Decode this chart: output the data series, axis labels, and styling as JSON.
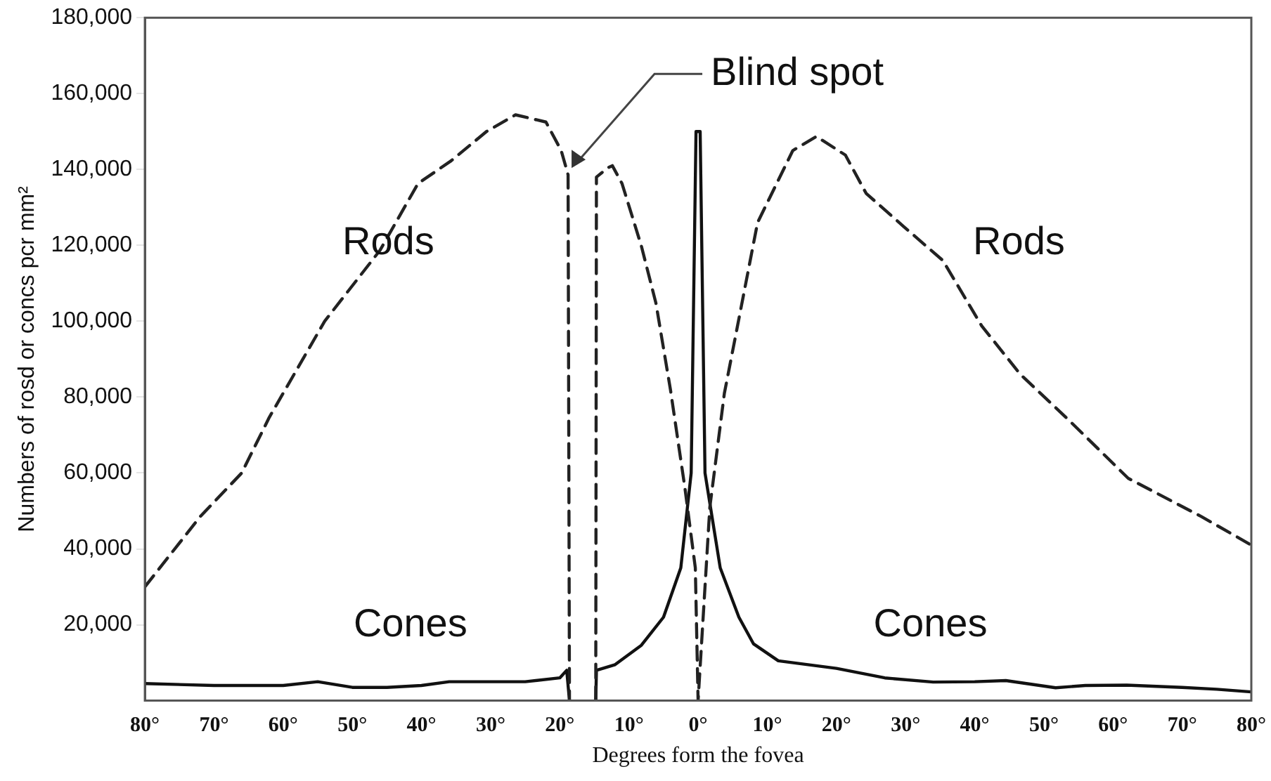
{
  "chart_data": {
    "type": "line",
    "xlabel": "Degrees form the fovea",
    "ylabel": "Numbers of rosd or concs pcr mm²",
    "xlim": [
      -80,
      80
    ],
    "xticks": [
      {
        "value": -80,
        "label": "80°"
      },
      {
        "value": -70,
        "label": "70°"
      },
      {
        "value": -60,
        "label": "60°"
      },
      {
        "value": -50,
        "label": "50°"
      },
      {
        "value": -40,
        "label": "40°"
      },
      {
        "value": -30,
        "label": "30°"
      },
      {
        "value": -20,
        "label": "20°"
      },
      {
        "value": -10,
        "label": "10°"
      },
      {
        "value": 0,
        "label": "0°"
      },
      {
        "value": 10,
        "label": "10°"
      },
      {
        "value": 20,
        "label": "20°"
      },
      {
        "value": 30,
        "label": "30°"
      },
      {
        "value": 40,
        "label": "40°"
      },
      {
        "value": 50,
        "label": "50°"
      },
      {
        "value": 60,
        "label": "60°"
      },
      {
        "value": 70,
        "label": "70°"
      },
      {
        "value": 80,
        "label": "80°"
      }
    ],
    "ylim": [
      0,
      180000
    ],
    "yticks": [
      {
        "value": 20000,
        "label": "20,000"
      },
      {
        "value": 40000,
        "label": "40,000"
      },
      {
        "value": 60000,
        "label": "60,000"
      },
      {
        "value": 80000,
        "label": "80,000"
      },
      {
        "value": 100000,
        "label": "100,000"
      },
      {
        "value": 120000,
        "label": "120,000"
      },
      {
        "value": 140000,
        "label": "140,000"
      },
      {
        "value": 160000,
        "label": "160,000"
      },
      {
        "value": 180000,
        "label": "180,000"
      }
    ],
    "grid": false,
    "marker": "none",
    "legend": false,
    "series": [
      {
        "name": "Rods",
        "color": "#222222",
        "line_style": "dashed",
        "x": [
          -80,
          -72,
          -66,
          -62,
          -54,
          -46,
          -40.5,
          -35.7,
          -30.6,
          -26.4,
          -22,
          -19.8,
          -18.8,
          -18.6,
          -17,
          -14.8,
          -14.7,
          -13,
          -12.4,
          -11,
          -8.2,
          -6.1,
          -4,
          -1.9,
          -0.4,
          0,
          1.7,
          3.8,
          5.3,
          8.6,
          13.7,
          17.1,
          21.3,
          24.3,
          29.7,
          35.4,
          41,
          46.6,
          53.8,
          62.2,
          72.8,
          80
        ],
        "values": [
          30000,
          48500,
          60000,
          74700,
          100000,
          118700,
          136300,
          142300,
          150000,
          154400,
          152500,
          145000,
          138600,
          0,
          null,
          0,
          138000,
          140500,
          141000,
          136300,
          119800,
          104800,
          82000,
          56000,
          35000,
          0,
          51000,
          81000,
          95000,
          126000,
          145000,
          148700,
          143800,
          133700,
          125000,
          116000,
          98800,
          86000,
          73600,
          58600,
          48500,
          41000
        ]
      },
      {
        "name": "Cones",
        "color": "#111111",
        "line_style": "solid",
        "x": [
          -80,
          -70,
          -60,
          -55,
          -50,
          -45,
          -40,
          -36,
          -30,
          -25,
          -20,
          -19,
          -18.6,
          -17,
          -14.8,
          -14.7,
          -12,
          -8.2,
          -5,
          -2.5,
          -1,
          -0.3,
          0,
          0.3,
          1,
          3.2,
          5.9,
          8,
          11.6,
          20,
          27,
          34,
          40,
          44.5,
          51.7,
          56,
          62,
          70,
          75,
          80
        ],
        "values": [
          4500,
          4000,
          4000,
          5000,
          3500,
          3500,
          4000,
          5000,
          5000,
          5000,
          6000,
          8000,
          0,
          null,
          0,
          8000,
          9500,
          14600,
          22000,
          35000,
          60000,
          150000,
          150000,
          150000,
          60000,
          35000,
          22000,
          15000,
          10500,
          8500,
          6000,
          4900,
          5000,
          5300,
          3400,
          4000,
          4100,
          3500,
          3000,
          2300
        ]
      }
    ],
    "annotations": [
      {
        "text": "Blind spot",
        "x": -18.5,
        "y": 140000
      }
    ]
  }
}
